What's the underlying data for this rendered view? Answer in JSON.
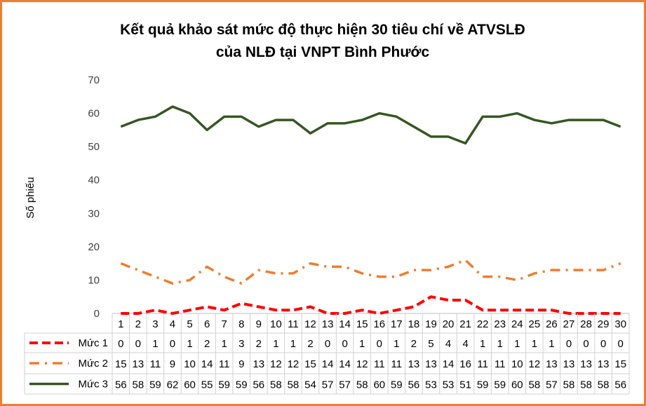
{
  "chart_data": {
    "type": "line",
    "title_line1": "Kết quả khảo sát mức độ thực hiện 30 tiêu chí về ATVSLĐ",
    "title_line2": "của NLĐ tại VNPT Bình Phước",
    "ylabel": "Số phiếu",
    "xlabel": "",
    "ylim": [
      0,
      70
    ],
    "yticks": [
      0,
      10,
      20,
      30,
      40,
      50,
      60,
      70
    ],
    "grid": false,
    "legend": "data-table",
    "categories": [
      "1",
      "2",
      "3",
      "4",
      "5",
      "6",
      "7",
      "8",
      "9",
      "10",
      "11",
      "12",
      "13",
      "14",
      "15",
      "16",
      "17",
      "18",
      "19",
      "20",
      "21",
      "22",
      "23",
      "24",
      "25",
      "26",
      "27",
      "28",
      "29",
      "30"
    ],
    "series": [
      {
        "name": "Mức 1",
        "color": "#FF0000",
        "dash": "dashed",
        "values": [
          0,
          0,
          1,
          0,
          1,
          2,
          1,
          3,
          2,
          1,
          1,
          2,
          0,
          0,
          1,
          0,
          1,
          2,
          5,
          4,
          4,
          1,
          1,
          1,
          1,
          1,
          0,
          0,
          0,
          0
        ]
      },
      {
        "name": "Mức 2",
        "color": "#ED7D31",
        "dash": "dash-dot",
        "values": [
          15,
          13,
          11,
          9,
          10,
          14,
          11,
          9,
          13,
          12,
          12,
          15,
          14,
          14,
          12,
          11,
          11,
          13,
          13,
          14,
          16,
          11,
          11,
          10,
          12,
          13,
          13,
          13,
          13,
          15
        ]
      },
      {
        "name": "Mức 3",
        "color": "#375623",
        "dash": "solid",
        "values": [
          56,
          58,
          59,
          62,
          60,
          55,
          59,
          59,
          56,
          58,
          58,
          54,
          57,
          57,
          58,
          60,
          59,
          56,
          53,
          53,
          51,
          59,
          59,
          60,
          58,
          57,
          58,
          58,
          58,
          56
        ]
      }
    ]
  },
  "colors": {
    "border": "#ED7D31"
  }
}
